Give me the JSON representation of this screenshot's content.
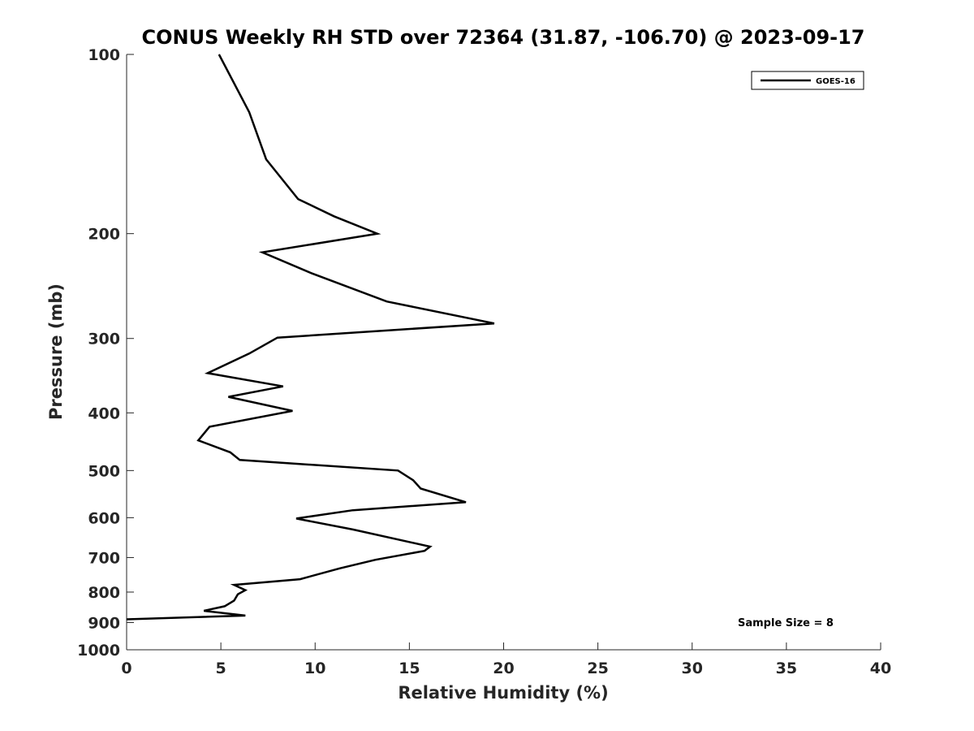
{
  "chart_data": {
    "type": "line",
    "title": "CONUS Weekly RH STD over 72364 (31.87, -106.70) @ 2023-09-17",
    "xlabel": "Relative Humidity (%)",
    "ylabel": "Pressure (mb)",
    "xlim": [
      0,
      40
    ],
    "ylim": [
      100,
      1000
    ],
    "y_scale": "log",
    "y_reversed": true,
    "x_ticks": [
      "0",
      "5",
      "10",
      "15",
      "20",
      "25",
      "30",
      "35",
      "40"
    ],
    "y_ticks": [
      "100",
      "200",
      "300",
      "400",
      "500",
      "600",
      "700",
      "800",
      "900",
      "1000"
    ],
    "grid": false,
    "legend_position": "top-right",
    "annotation": "Sample Size = 8",
    "series": [
      {
        "name": "GOES-16",
        "color": "#000000",
        "points": [
          [
            4.9,
            100
          ],
          [
            6.5,
            125
          ],
          [
            7.4,
            150
          ],
          [
            9.1,
            175
          ],
          [
            11.0,
            187
          ],
          [
            13.3,
            200
          ],
          [
            7.2,
            215
          ],
          [
            9.8,
            233
          ],
          [
            13.8,
            260
          ],
          [
            19.5,
            283
          ],
          [
            8.0,
            299
          ],
          [
            6.5,
            318
          ],
          [
            4.3,
            343
          ],
          [
            8.3,
            361
          ],
          [
            5.4,
            376
          ],
          [
            8.8,
            397
          ],
          [
            4.4,
            422
          ],
          [
            3.8,
            445
          ],
          [
            5.5,
            466
          ],
          [
            6.0,
            480
          ],
          [
            14.4,
            500
          ],
          [
            15.2,
            519
          ],
          [
            15.6,
            536
          ],
          [
            18.0,
            565
          ],
          [
            12.0,
            583
          ],
          [
            9.0,
            602
          ],
          [
            12.0,
            628
          ],
          [
            16.1,
            671
          ],
          [
            15.8,
            682
          ],
          [
            13.2,
            706
          ],
          [
            11.3,
            730
          ],
          [
            9.2,
            761
          ],
          [
            5.7,
            778
          ],
          [
            6.3,
            794
          ],
          [
            5.9,
            807
          ],
          [
            5.7,
            827
          ],
          [
            5.2,
            845
          ],
          [
            4.1,
            860
          ],
          [
            6.3,
            876
          ],
          [
            0,
            889
          ]
        ]
      }
    ]
  }
}
